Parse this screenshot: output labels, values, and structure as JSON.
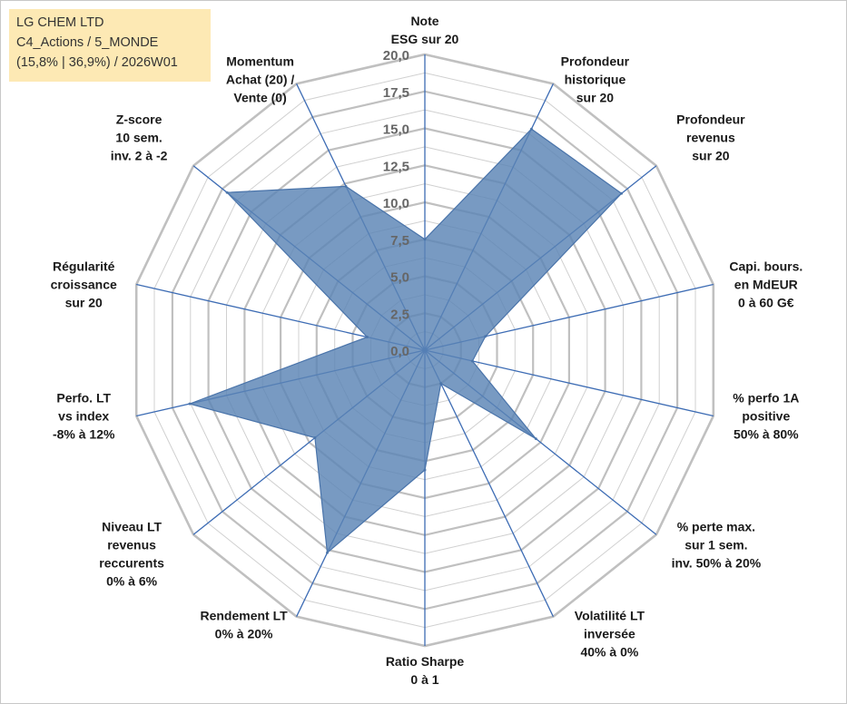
{
  "info_box": {
    "line1": "LG CHEM LTD",
    "line2": "C4_Actions / 5_MONDE",
    "line3": "(15,8% | 36,9%) / 2026W01"
  },
  "chart_data": {
    "type": "radar",
    "title": "",
    "rmin": 0,
    "rmax": 20,
    "tick_step": 2.5,
    "ticks": [
      "0,0",
      "2,5",
      "5,0",
      "7,5",
      "10,0",
      "12,5",
      "15,0",
      "17,5",
      "20,0"
    ],
    "minor_rings": 16,
    "axes": [
      {
        "lines": [
          "Note",
          "ESG sur 20"
        ],
        "value": 7.5
      },
      {
        "lines": [
          "Profondeur",
          "historique",
          "sur 20"
        ],
        "value": 16.6
      },
      {
        "lines": [
          "Profondeur",
          "revenus",
          "sur 20"
        ],
        "value": 17.0
      },
      {
        "lines": [
          "Capi. bours.",
          "en MdEUR",
          "0 à 60 G€"
        ],
        "value": 4.2
      },
      {
        "lines": [
          "% perfo 1A",
          "positive",
          "50% à 80%"
        ],
        "value": 3.3
      },
      {
        "lines": [
          "% perte max.",
          "sur 1 sem.",
          "inv. 50% à 20%"
        ],
        "value": 9.6
      },
      {
        "lines": [
          "Volatilité LT",
          "inversée",
          "40% à 0%"
        ],
        "value": 2.5
      },
      {
        "lines": [
          "Ratio Sharpe",
          "0 à 1"
        ],
        "value": 8.1
      },
      {
        "lines": [
          "Rendement LT",
          "0% à 20%"
        ],
        "value": 15.2
      },
      {
        "lines": [
          "Niveau LT",
          "revenus",
          "reccurents",
          "0% à 6%"
        ],
        "value": 9.5
      },
      {
        "lines": [
          "Perfo. LT",
          "vs index",
          "-8% à 12%"
        ],
        "value": 16.3
      },
      {
        "lines": [
          "Régularité",
          "croissance",
          "sur 20"
        ],
        "value": 4.0
      },
      {
        "lines": [
          "Z-score",
          "10 sem.",
          "inv. 2 à -2"
        ],
        "value": 17.1
      },
      {
        "lines": [
          "Momentum",
          "Achat (20) /",
          "Vente (0)"
        ],
        "value": 12.3
      }
    ],
    "colors": {
      "fill": "#5a84b5",
      "fill_opacity": 0.82,
      "stroke": "#4a74aa",
      "spoke": "#3d6cb4",
      "major_ring": "#c0c0c0",
      "minor_ring": "#d0d0d0"
    }
  }
}
